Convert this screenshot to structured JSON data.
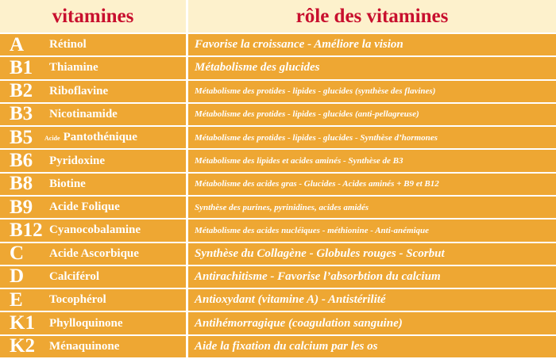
{
  "header": {
    "columns": [
      "vitamines",
      "rôle des vitamines"
    ]
  },
  "table": {
    "rows": [
      {
        "code": "A",
        "name": "Rétinol",
        "role": "Favorise la croissance - Améliore la vision"
      },
      {
        "code": "B1",
        "name": "Thiamine",
        "role": "Métabolisme des glucides"
      },
      {
        "code": "B2",
        "name": "Riboflavine",
        "role": "Métabolisme des protides - lipides - glucides (synthèse  des flavines)"
      },
      {
        "code": "B3",
        "name": "Nicotinamide",
        "role": "Métabolisme des protides - lipides - glucides (anti-pellagreuse)"
      },
      {
        "code": "B5",
        "prefix": "Acide",
        "name": "Pantothénique",
        "role": "Métabolisme des protides - lipides - glucides - Synthèse d’hormones"
      },
      {
        "code": "B6",
        "name": "Pyridoxine",
        "role": "Métabolisme des  lipides et acides aminés - Synthèse de B3"
      },
      {
        "code": "B8",
        "name": "Biotine",
        "role": "Métabolisme des acides gras -  Glucides - Acides aminés + B9  et  B12"
      },
      {
        "code": "B9",
        "name": "Acide Folique",
        "role": "Synthèse des purines,  pyrinidines,  acides amidés"
      },
      {
        "code": "B12",
        "name": "Cyanocobalamine",
        "role": "Métabolisme des acides nucléiques -  méthionine -  Anti-anémique"
      },
      {
        "code": "C",
        "name": "Acide Ascorbique",
        "role": "Synthèse du Collagène - Globules rouges -  Scorbut"
      },
      {
        "code": "D",
        "name": "Calciférol",
        "role": "Antirachitisme - Favorise l’absorbtion du calcium"
      },
      {
        "code": "E",
        "name": "Tocophérol",
        "role": " Antioxydant (vitamine A) - Antistérilité"
      },
      {
        "code": "K1",
        "name": "Phylloquinone",
        "role": "Antihémorragique (coagulation sanguine)"
      },
      {
        "code": "K2",
        "name": "Ménaquinone",
        "role": "Aide la fixation du calcium par les os"
      }
    ]
  }
}
